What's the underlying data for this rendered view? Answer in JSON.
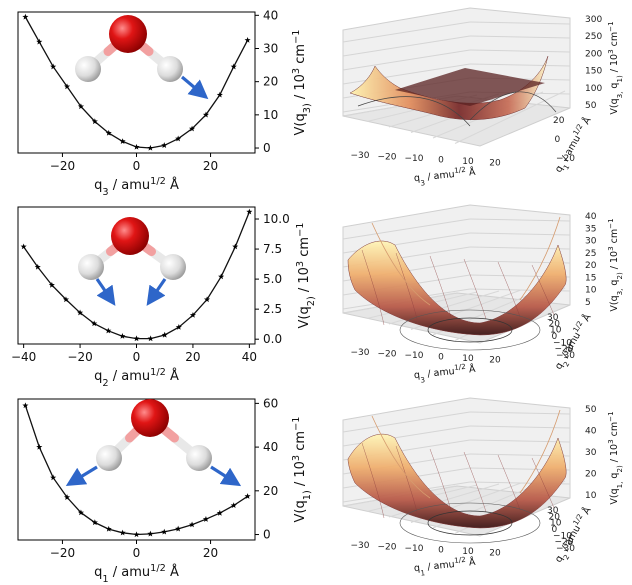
{
  "chart_data": [
    {
      "type": "line",
      "name": "q3 potential",
      "x": [
        -30,
        -26.25,
        -22.5,
        -18.75,
        -15,
        -11.25,
        -7.5,
        -3.75,
        0,
        3.75,
        7.5,
        11.25,
        15,
        18.75,
        22.5,
        26.25,
        30
      ],
      "y": [
        39.5,
        32,
        24.5,
        18.5,
        12.5,
        8,
        4.5,
        2,
        0.3,
        0,
        0.8,
        2.8,
        5.8,
        10,
        16,
        24.5,
        32.5
      ],
      "xticks": [
        "−20",
        "0",
        "20"
      ],
      "xtick_values": [
        -20,
        0,
        20
      ],
      "yticks": [
        "0",
        "10",
        "20",
        "30",
        "40"
      ],
      "ytick_values": [
        0,
        10,
        20,
        30,
        40
      ],
      "xlabel": "q_3  / amu^1/2 Å",
      "ylabel": "V(q_3) / 10^3 cm^−1",
      "xlim": [
        -32,
        32
      ],
      "ylim": [
        -1.5,
        41
      ],
      "marker": "star",
      "molecule_mode": "asymmetric stretch"
    },
    {
      "type": "line",
      "name": "q2 potential",
      "x": [
        -40,
        -35,
        -30,
        -25,
        -20,
        -15,
        -10,
        -5,
        0,
        5,
        10,
        15,
        20,
        25,
        30,
        35,
        40
      ],
      "y": [
        7.7,
        6.0,
        4.5,
        3.3,
        2.2,
        1.3,
        0.7,
        0.25,
        0.05,
        0.05,
        0.35,
        1.0,
        2.0,
        3.3,
        5.2,
        7.7,
        10.6
      ],
      "xticks": [
        "−40",
        "−20",
        "0",
        "20",
        "40"
      ],
      "xtick_values": [
        -40,
        -20,
        0,
        20,
        40
      ],
      "yticks": [
        "0.0",
        "2.5",
        "5.0",
        "7.5",
        "10.0"
      ],
      "ytick_values": [
        0,
        2.5,
        5,
        7.5,
        10
      ],
      "xlabel": "q_2  / amu^1/2 Å",
      "ylabel": "V(q_2) / 10^3 cm^−1",
      "xlim": [
        -42,
        42
      ],
      "ylim": [
        -0.4,
        11.0
      ],
      "marker": "star",
      "molecule_mode": "bending"
    },
    {
      "type": "line",
      "name": "q1 potential",
      "x": [
        -30,
        -26.25,
        -22.5,
        -18.75,
        -15,
        -11.25,
        -7.5,
        -3.75,
        0,
        3.75,
        7.5,
        11.25,
        15,
        18.75,
        22.5,
        26.25,
        30
      ],
      "y": [
        59,
        40,
        26,
        17,
        10,
        5.5,
        2.5,
        0.8,
        0,
        0.3,
        1.2,
        2.6,
        4.5,
        7,
        9.8,
        13.3,
        17.5
      ],
      "xticks": [
        "−20",
        "0",
        "20"
      ],
      "xtick_values": [
        -20,
        0,
        20
      ],
      "yticks": [
        "0",
        "20",
        "40",
        "60"
      ],
      "ytick_values": [
        0,
        20,
        40,
        60
      ],
      "xlabel": "q_1  / amu^1/2 Å",
      "ylabel": "V(q_1) / 10^3 cm^−1",
      "xlim": [
        -32,
        32
      ],
      "ylim": [
        -2.5,
        62
      ],
      "marker": "star",
      "molecule_mode": "symmetric stretch"
    },
    {
      "type": "surface",
      "name": "V(q3,q1)",
      "x_ticks": [
        "−30",
        "−20",
        "−10",
        "0",
        "10",
        "20"
      ],
      "y_ticks": [
        "−20",
        "0",
        "20"
      ],
      "z_ticks": [
        "50",
        "100",
        "150",
        "200",
        "250",
        "300"
      ],
      "xlabel": "q_3 / amu^1/2 Å",
      "ylabel": "q_1 / amu^1/2 Å",
      "zlabel": "V(q_3, q_1) / 10^3 cm^−1",
      "zlim": [
        0,
        300
      ]
    },
    {
      "type": "surface",
      "name": "V(q3,q2)",
      "x_ticks": [
        "−30",
        "−20",
        "−10",
        "0",
        "10",
        "20"
      ],
      "y_ticks": [
        "−30",
        "−20",
        "−10",
        "0",
        "10",
        "20",
        "30"
      ],
      "z_ticks": [
        "5",
        "10",
        "15",
        "20",
        "25",
        "30",
        "35",
        "40"
      ],
      "xlabel": "q_3 / amu^1/2 Å",
      "ylabel": "q_2 / amu^1/2 Å",
      "zlabel": "V(q_3, q_2) / 10^3 cm^−1",
      "zlim": [
        0,
        40
      ]
    },
    {
      "type": "surface",
      "name": "V(q1,q2)",
      "x_ticks": [
        "−30",
        "−20",
        "−10",
        "0",
        "10",
        "20"
      ],
      "y_ticks": [
        "−30",
        "−20",
        "−10",
        "0",
        "10",
        "20",
        "30"
      ],
      "z_ticks": [
        "10",
        "20",
        "30",
        "40",
        "50"
      ],
      "xlabel": "q_1 / amu^1/2 Å",
      "ylabel": "q_2 / amu^1/2 Å",
      "zlabel": "V(q_1, q_2) / 10^3 cm^−1",
      "zlim": [
        0,
        55
      ]
    }
  ],
  "colors": {
    "curve": "#111111",
    "oxygen": "#dd1111",
    "hydrogen": "#d8d8d8",
    "arrow": "#2e66c9",
    "surface_low": "#4a1a1a",
    "surface_mid": "#c0604a",
    "surface_high": "#fff3b0"
  }
}
